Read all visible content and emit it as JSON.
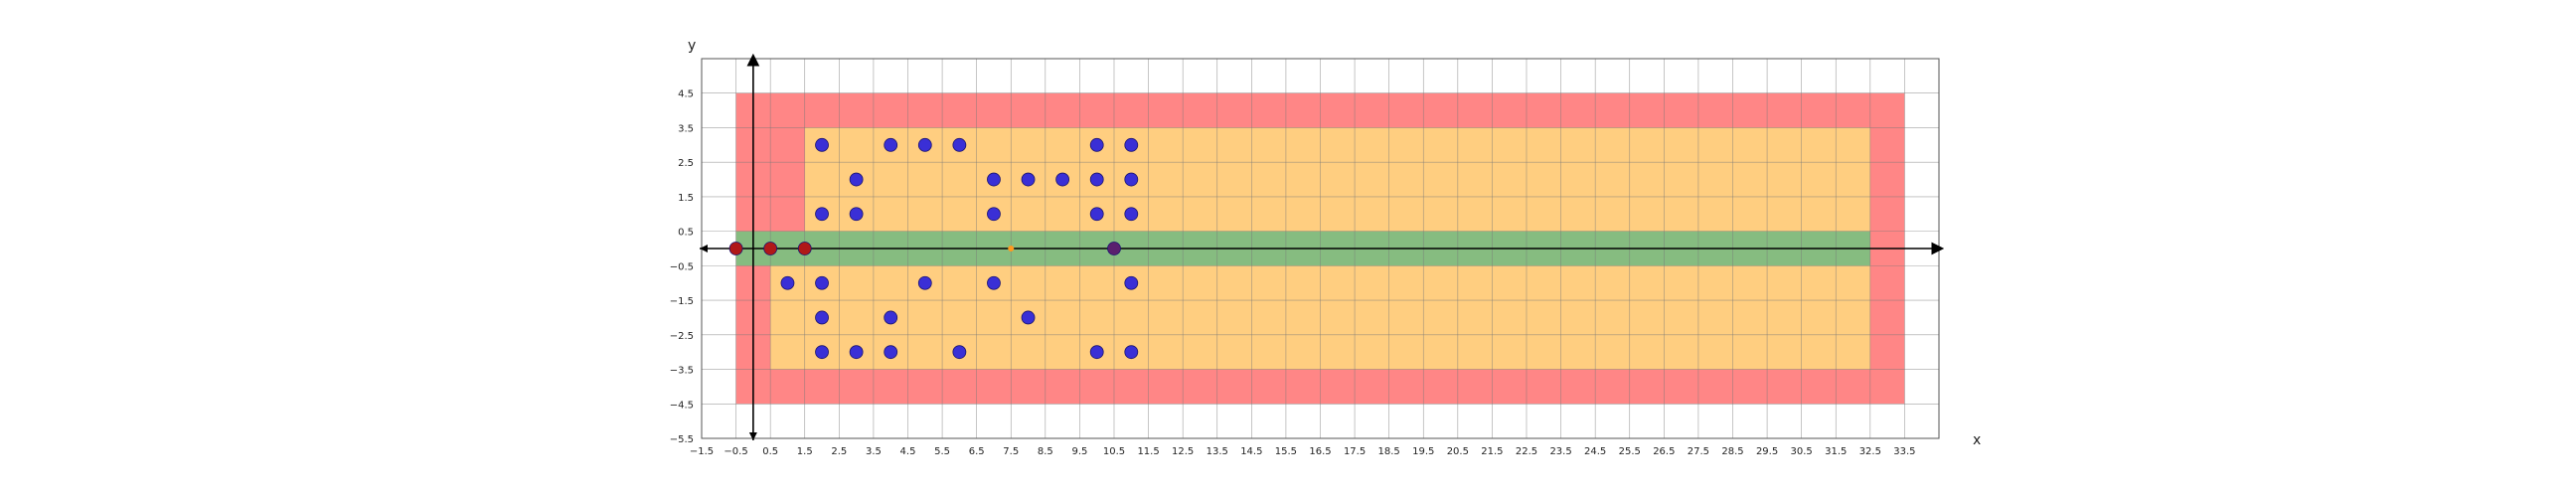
{
  "chart_data": {
    "type": "scatter",
    "title": "",
    "xlabel": "x",
    "ylabel": "y",
    "xlim": [
      -1.5,
      34.5
    ],
    "ylim": [
      -5.5,
      5.5
    ],
    "grid": true,
    "x_ticks": [
      -1.5,
      -0.5,
      0.5,
      1.5,
      2.5,
      3.5,
      4.5,
      5.5,
      6.5,
      7.5,
      8.5,
      9.5,
      10.5,
      11.5,
      12.5,
      13.5,
      14.5,
      15.5,
      16.5,
      17.5,
      18.5,
      19.5,
      20.5,
      21.5,
      22.5,
      23.5,
      24.5,
      25.5,
      26.5,
      27.5,
      28.5,
      29.5,
      30.5,
      31.5,
      32.5,
      33.5
    ],
    "y_ticks": [
      4.5,
      3.5,
      2.5,
      1.5,
      0.5,
      -0.5,
      -1.5,
      -2.5,
      -3.5,
      -4.5,
      -5.5
    ],
    "regions": [
      {
        "color": "#ff8080",
        "x0": -0.5,
        "x1": 33.5,
        "y0": -4.5,
        "y1": 4.5
      },
      {
        "color": "#ffd27f",
        "x0": 1.5,
        "x1": 32.5,
        "y0": 0.5,
        "y1": 3.5
      },
      {
        "color": "#ffd27f",
        "x0": 0.5,
        "x1": 32.5,
        "y0": -3.5,
        "y1": -0.5
      },
      {
        "color": "#7fbf7f",
        "x0": -0.5,
        "x1": 32.5,
        "y0": -0.5,
        "y1": 0.5
      }
    ],
    "series": [
      {
        "color": "#3a2fd6",
        "points": [
          [
            2,
            3
          ],
          [
            4,
            3
          ],
          [
            5,
            3
          ],
          [
            6,
            3
          ],
          [
            10,
            3
          ],
          [
            11,
            3
          ],
          [
            3,
            2
          ],
          [
            7,
            2
          ],
          [
            8,
            2
          ],
          [
            9,
            2
          ],
          [
            10,
            2
          ],
          [
            11,
            2
          ],
          [
            2,
            1
          ],
          [
            3,
            1
          ],
          [
            7,
            1
          ],
          [
            10,
            1
          ],
          [
            11,
            1
          ],
          [
            1,
            -1
          ],
          [
            2,
            -1
          ],
          [
            5,
            -1
          ],
          [
            7,
            -1
          ],
          [
            11,
            -1
          ],
          [
            2,
            -2
          ],
          [
            4,
            -2
          ],
          [
            8,
            -2
          ],
          [
            2,
            -3
          ],
          [
            3,
            -3
          ],
          [
            4,
            -3
          ],
          [
            6,
            -3
          ],
          [
            10,
            -3
          ],
          [
            11,
            -3
          ]
        ]
      },
      {
        "color": "#b01818",
        "points": [
          [
            -0.5,
            0
          ],
          [
            0.5,
            0
          ],
          [
            1.5,
            0
          ]
        ]
      },
      {
        "color": "#5a1f6e",
        "points": [
          [
            10.5,
            0
          ]
        ]
      },
      {
        "color": "#ff9a1f",
        "points": [
          [
            7.5,
            0
          ]
        ]
      }
    ]
  }
}
